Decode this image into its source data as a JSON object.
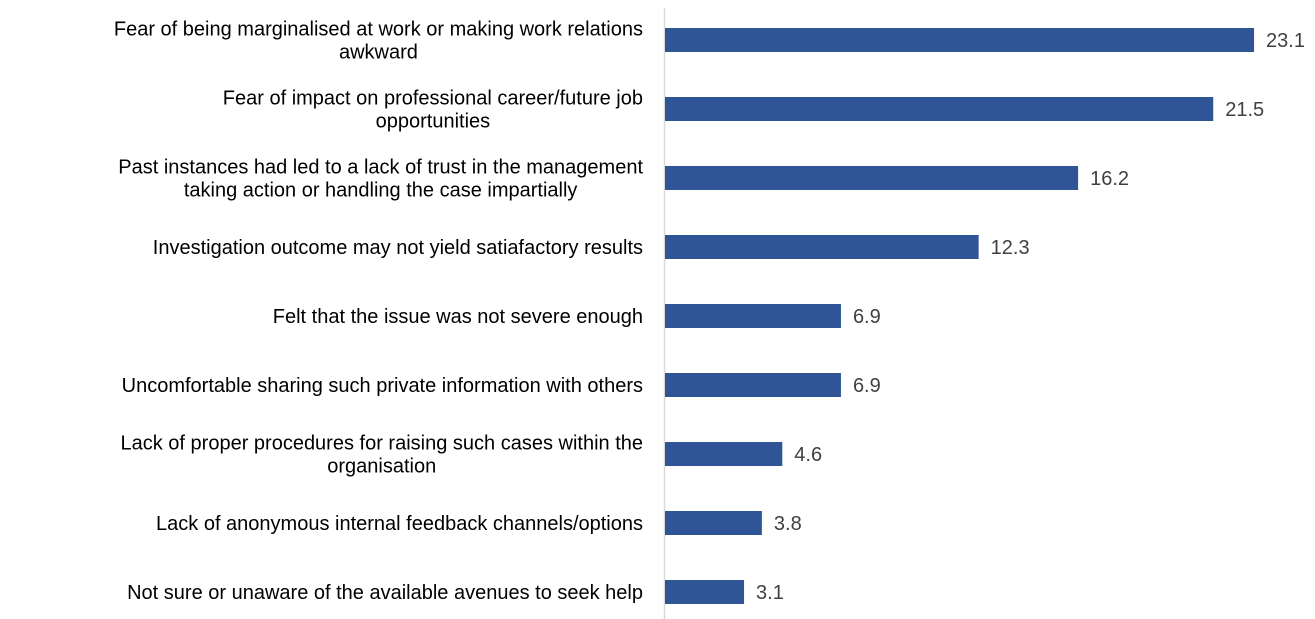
{
  "chart_data": {
    "type": "bar",
    "orientation": "horizontal",
    "title": "",
    "xlabel": "",
    "ylabel": "",
    "xlim": [
      0,
      25
    ],
    "grid": false,
    "legend": "none",
    "bar_color": "#2F5597",
    "categories": [
      [
        "Fear of being marginalised at work or making work relations",
        "awkward"
      ],
      [
        "Fear of impact on professional career/future job",
        "opportunities"
      ],
      [
        "Past instances had led to a lack of trust in the management",
        "taking action or handling the case impartially"
      ],
      [
        "Investigation outcome may not yield satiafactory results"
      ],
      [
        "Felt that the issue was not severe enough"
      ],
      [
        "Uncomfortable sharing such private information with others"
      ],
      [
        "Lack of proper procedures for raising such cases within the",
        "organisation"
      ],
      [
        "Lack of anonymous internal feedback channels/options"
      ],
      [
        "Not sure or unaware of the available avenues to seek help"
      ]
    ],
    "values": [
      23.1,
      21.5,
      16.2,
      12.3,
      6.9,
      6.9,
      4.6,
      3.8,
      3.1
    ],
    "value_labels": [
      "23.1",
      "21.5",
      "16.2",
      "12.3",
      "6.9",
      "6.9",
      "4.6",
      "3.8",
      "3.1"
    ]
  }
}
